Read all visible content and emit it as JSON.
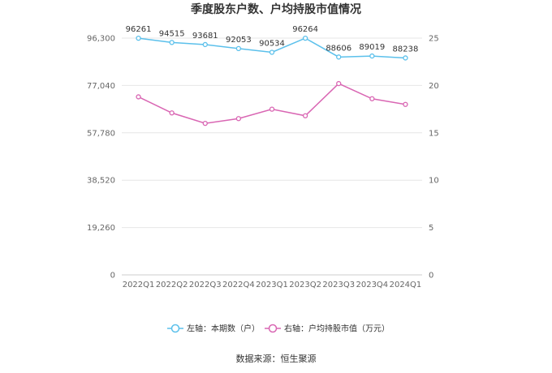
{
  "chart_data": {
    "type": "line",
    "title": "季度股东户数、户均持股市值情况",
    "categories": [
      "2022Q1",
      "2022Q2",
      "2022Q3",
      "2022Q4",
      "2023Q1",
      "2023Q2",
      "2023Q3",
      "2023Q4",
      "2024Q1"
    ],
    "left_axis": {
      "ticks": [
        "0",
        "19,260",
        "38,520",
        "57,780",
        "77,040",
        "96,300"
      ],
      "ylim": [
        0,
        96300
      ]
    },
    "right_axis": {
      "ticks": [
        "0",
        "5",
        "10",
        "15",
        "20",
        "25"
      ],
      "ylim": [
        0,
        25
      ]
    },
    "series": [
      {
        "name": "左轴：本期数（户）",
        "axis": "left",
        "color": "#5bc0eb",
        "values": [
          96261,
          94515,
          93681,
          92053,
          90534,
          96264,
          88606,
          89019,
          88238
        ],
        "labels": [
          "96261",
          "94515",
          "93681",
          "92053",
          "90534",
          "96264",
          "88606",
          "89019",
          "88238"
        ]
      },
      {
        "name": "右轴：户均持股市值（万元）",
        "axis": "right",
        "color": "#d966b3",
        "values": [
          18.8,
          17.1,
          16.0,
          16.5,
          17.5,
          16.8,
          20.2,
          18.6,
          18.0
        ]
      }
    ],
    "grid": true,
    "legend_position": "bottom"
  },
  "source": "数据来源：恒生聚源"
}
